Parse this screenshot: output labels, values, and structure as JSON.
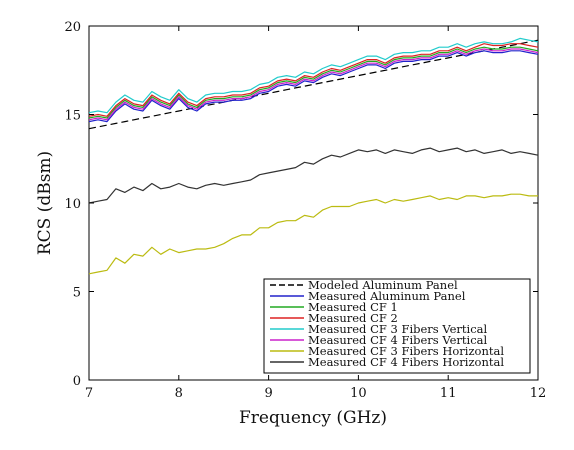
{
  "chart_data": {
    "type": "line",
    "title": "",
    "xlabel": "Frequency (GHz)",
    "ylabel": "RCS (dBsm)",
    "xlim": [
      7,
      12
    ],
    "ylim": [
      0,
      20
    ],
    "xticks": [
      "7",
      "8",
      "9",
      "10",
      "11",
      "12"
    ],
    "yticks": [
      "0",
      "5",
      "10",
      "15",
      "20"
    ],
    "grid": false,
    "legend_position": "bottom-right",
    "x": [
      7.0,
      7.1,
      7.2,
      7.3,
      7.4,
      7.5,
      7.6,
      7.7,
      7.8,
      7.9,
      8.0,
      8.1,
      8.2,
      8.3,
      8.4,
      8.5,
      8.6,
      8.7,
      8.8,
      8.9,
      9.0,
      9.1,
      9.2,
      9.3,
      9.4,
      9.5,
      9.6,
      9.7,
      9.8,
      9.9,
      10.0,
      10.1,
      10.2,
      10.3,
      10.4,
      10.5,
      10.6,
      10.7,
      10.8,
      10.9,
      11.0,
      11.1,
      11.2,
      11.3,
      11.4,
      11.5,
      11.6,
      11.7,
      11.8,
      11.9,
      12.0
    ],
    "series": [
      {
        "name": "Modeled Aluminum Panel",
        "color": "#000000",
        "dash": "dashed",
        "values": [
          14.2,
          14.3,
          14.4,
          14.5,
          14.6,
          14.7,
          14.8,
          14.9,
          15.0,
          15.1,
          15.2,
          15.3,
          15.4,
          15.5,
          15.6,
          15.7,
          15.8,
          15.9,
          16.0,
          16.1,
          16.2,
          16.3,
          16.4,
          16.5,
          16.6,
          16.7,
          16.8,
          16.9,
          17.0,
          17.1,
          17.2,
          17.3,
          17.4,
          17.5,
          17.6,
          17.7,
          17.8,
          17.9,
          18.0,
          18.1,
          18.2,
          18.3,
          18.4,
          18.5,
          18.6,
          18.7,
          18.8,
          18.9,
          19.0,
          19.1,
          19.2
        ]
      },
      {
        "name": "Measured Aluminum Panel",
        "color": "#2222cc",
        "dash": "solid",
        "values": [
          14.6,
          14.7,
          14.6,
          15.2,
          15.6,
          15.3,
          15.2,
          15.8,
          15.5,
          15.3,
          15.9,
          15.4,
          15.2,
          15.6,
          15.7,
          15.7,
          15.8,
          15.8,
          15.9,
          16.2,
          16.3,
          16.6,
          16.7,
          16.6,
          16.9,
          16.8,
          17.1,
          17.3,
          17.2,
          17.4,
          17.6,
          17.8,
          17.8,
          17.6,
          17.9,
          18.0,
          18.0,
          18.1,
          18.1,
          18.3,
          18.3,
          18.5,
          18.3,
          18.5,
          18.6,
          18.5,
          18.5,
          18.6,
          18.6,
          18.5,
          18.4
        ]
      },
      {
        "name": "Measured CF 1",
        "color": "#22aa22",
        "dash": "solid",
        "values": [
          14.8,
          14.9,
          14.8,
          15.4,
          15.8,
          15.5,
          15.4,
          16.0,
          15.7,
          15.5,
          16.1,
          15.6,
          15.4,
          15.8,
          15.9,
          15.9,
          16.0,
          16.0,
          16.1,
          16.4,
          16.5,
          16.8,
          16.9,
          16.8,
          17.1,
          17.0,
          17.3,
          17.5,
          17.4,
          17.6,
          17.8,
          18.0,
          18.0,
          17.8,
          18.1,
          18.2,
          18.2,
          18.3,
          18.3,
          18.5,
          18.5,
          18.7,
          18.5,
          18.7,
          18.8,
          18.7,
          18.7,
          18.8,
          18.8,
          18.7,
          18.6
        ]
      },
      {
        "name": "Measured CF 2",
        "color": "#dd2222",
        "dash": "solid",
        "values": [
          14.9,
          15.0,
          14.9,
          15.5,
          15.9,
          15.6,
          15.5,
          16.1,
          15.8,
          15.6,
          16.2,
          15.7,
          15.5,
          15.9,
          16.0,
          16.0,
          16.1,
          16.1,
          16.2,
          16.5,
          16.6,
          16.9,
          17.0,
          16.9,
          17.2,
          17.1,
          17.4,
          17.6,
          17.5,
          17.7,
          17.9,
          18.1,
          18.1,
          17.9,
          18.2,
          18.3,
          18.3,
          18.4,
          18.4,
          18.6,
          18.6,
          18.8,
          18.6,
          18.8,
          19.0,
          18.9,
          18.9,
          19.0,
          19.0,
          18.9,
          18.8
        ]
      },
      {
        "name": "Measured CF 3 Fibers Vertical",
        "color": "#22cccc",
        "dash": "solid",
        "values": [
          15.1,
          15.2,
          15.1,
          15.7,
          16.1,
          15.8,
          15.7,
          16.3,
          16.0,
          15.8,
          16.4,
          15.9,
          15.7,
          16.1,
          16.2,
          16.2,
          16.3,
          16.3,
          16.4,
          16.7,
          16.8,
          17.1,
          17.2,
          17.1,
          17.4,
          17.3,
          17.6,
          17.8,
          17.7,
          17.9,
          18.1,
          18.3,
          18.3,
          18.1,
          18.4,
          18.5,
          18.5,
          18.6,
          18.6,
          18.8,
          18.8,
          19.0,
          18.8,
          19.0,
          19.1,
          19.0,
          19.0,
          19.1,
          19.3,
          19.2,
          19.1
        ]
      },
      {
        "name": "Measured CF 4 Fibers Vertical",
        "color": "#cc22cc",
        "dash": "solid",
        "values": [
          14.7,
          14.8,
          14.7,
          15.3,
          15.7,
          15.4,
          15.3,
          15.9,
          15.6,
          15.4,
          16.0,
          15.5,
          15.3,
          15.7,
          15.8,
          15.8,
          15.9,
          15.9,
          16.0,
          16.3,
          16.4,
          16.7,
          16.8,
          16.7,
          17.0,
          16.9,
          17.2,
          17.4,
          17.3,
          17.5,
          17.7,
          17.9,
          17.9,
          17.7,
          18.0,
          18.1,
          18.1,
          18.2,
          18.2,
          18.4,
          18.4,
          18.6,
          18.4,
          18.6,
          18.7,
          18.6,
          18.6,
          18.7,
          18.7,
          18.6,
          18.5
        ]
      },
      {
        "name": "Measured CF 3 Fibers Horizontal",
        "color": "#bbbb11",
        "dash": "solid",
        "values": [
          6.0,
          6.1,
          6.2,
          6.9,
          6.6,
          7.1,
          7.0,
          7.5,
          7.1,
          7.4,
          7.2,
          7.3,
          7.4,
          7.4,
          7.5,
          7.7,
          8.0,
          8.2,
          8.2,
          8.6,
          8.6,
          8.9,
          9.0,
          9.0,
          9.3,
          9.2,
          9.6,
          9.8,
          9.8,
          9.8,
          10.0,
          10.1,
          10.2,
          10.0,
          10.2,
          10.1,
          10.2,
          10.3,
          10.4,
          10.2,
          10.3,
          10.2,
          10.4,
          10.4,
          10.3,
          10.4,
          10.4,
          10.5,
          10.5,
          10.4,
          10.4
        ]
      },
      {
        "name": "Measured CF 4 Fibers Horizontal",
        "color": "#333333",
        "dash": "solid",
        "values": [
          10.0,
          10.1,
          10.2,
          10.8,
          10.6,
          10.9,
          10.7,
          11.1,
          10.8,
          10.9,
          11.1,
          10.9,
          10.8,
          11.0,
          11.1,
          11.0,
          11.1,
          11.2,
          11.3,
          11.6,
          11.7,
          11.8,
          11.9,
          12.0,
          12.3,
          12.2,
          12.5,
          12.7,
          12.6,
          12.8,
          13.0,
          12.9,
          13.0,
          12.8,
          13.0,
          12.9,
          12.8,
          13.0,
          13.1,
          12.9,
          13.0,
          13.1,
          12.9,
          13.0,
          12.8,
          12.9,
          13.0,
          12.8,
          12.9,
          12.8,
          12.7
        ]
      }
    ]
  }
}
